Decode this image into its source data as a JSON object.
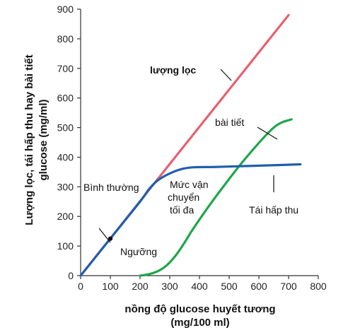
{
  "chart_data": {
    "type": "line",
    "xlabel_line1": "nồng độ glucose huyết tương",
    "xlabel_line2": "(mg/100 ml)",
    "ylabel_line1": "Lượng lọc, tái hấp thu hay bài tiết",
    "ylabel_line2": "glucose (mg/ml)",
    "xlim": [
      0,
      800
    ],
    "ylim": [
      0,
      900
    ],
    "x_ticks": [
      "0",
      "100",
      "200",
      "300",
      "400",
      "500",
      "600",
      "700",
      "800"
    ],
    "y_ticks": [
      "0",
      "100",
      "200",
      "300",
      "400",
      "500",
      "600",
      "700",
      "800",
      "900"
    ],
    "grid": false,
    "colors": {
      "filtered": "#e8606e",
      "reabsorbed": "#1f5fae",
      "excreted": "#1ea64a",
      "axis": "#333333",
      "leader": "#111111"
    },
    "series": [
      {
        "key": "filtered",
        "points": [
          [
            0,
            0
          ],
          [
            700,
            880
          ]
        ]
      },
      {
        "key": "reabsorbed",
        "points": [
          [
            0,
            0
          ],
          [
            100,
            125
          ],
          [
            200,
            250
          ],
          [
            230,
            292
          ],
          [
            260,
            322
          ],
          [
            300,
            345
          ],
          [
            340,
            360
          ],
          [
            380,
            366
          ],
          [
            450,
            367
          ],
          [
            550,
            370
          ],
          [
            650,
            373
          ],
          [
            740,
            376
          ]
        ]
      },
      {
        "key": "excreted",
        "points": [
          [
            200,
            0
          ],
          [
            230,
            5
          ],
          [
            260,
            15
          ],
          [
            290,
            35
          ],
          [
            320,
            68
          ],
          [
            350,
            112
          ],
          [
            380,
            160
          ],
          [
            450,
            260
          ],
          [
            550,
            390
          ],
          [
            650,
            500
          ],
          [
            710,
            528
          ]
        ]
      }
    ],
    "annotations": {
      "filtered": "lượng lọc",
      "excreted": "bài tiết",
      "normal": "Bình thường",
      "tmax_line1": "Mức vận",
      "tmax_line2": "chuyển",
      "tmax_line3": "tối đa",
      "reabsorbed": "Tái hấp thu",
      "threshold": "Ngưỡng"
    },
    "normal_marker": [
      100,
      125
    ]
  }
}
